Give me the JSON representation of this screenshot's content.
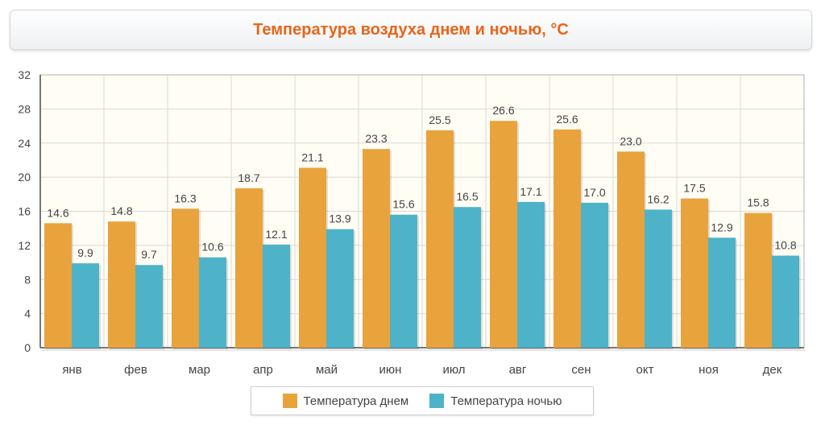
{
  "header": {
    "title": "Температура воздуха днем и ночью, °С"
  },
  "colors": {
    "day": "#e8a33d",
    "night": "#4eb3c8",
    "plot_bg": "#fffdf4",
    "grid": "#d9d9d9"
  },
  "chart_data": {
    "type": "bar",
    "title": "Температура воздуха днем и ночью, °С",
    "categories": [
      "янв",
      "фев",
      "мар",
      "апр",
      "май",
      "июн",
      "июл",
      "авг",
      "сен",
      "окт",
      "ноя",
      "дек"
    ],
    "series": [
      {
        "name": "Температура днем",
        "values": [
          14.6,
          14.8,
          16.3,
          18.7,
          21.1,
          23.3,
          25.5,
          26.6,
          25.6,
          23.0,
          17.5,
          15.8
        ]
      },
      {
        "name": "Температура ночью",
        "values": [
          9.9,
          9.7,
          10.6,
          12.1,
          13.9,
          15.6,
          16.5,
          17.1,
          17.0,
          16.2,
          12.9,
          10.8
        ]
      }
    ],
    "ylim": [
      0,
      32
    ],
    "yticks": [
      0,
      4,
      8,
      12,
      16,
      20,
      24,
      28,
      32
    ],
    "grid": true,
    "legend": "bottom-center"
  }
}
